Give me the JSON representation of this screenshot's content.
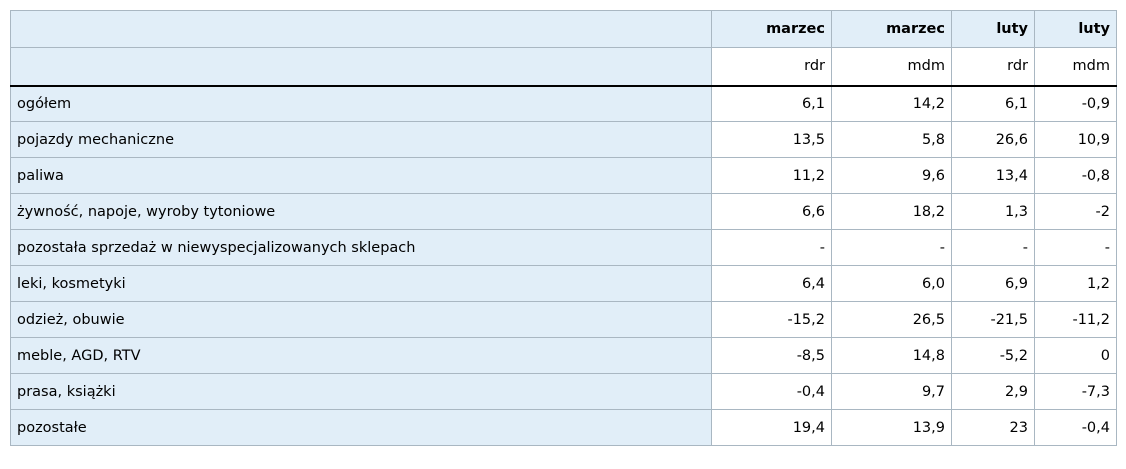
{
  "table": {
    "header": [
      [
        "marzec",
        "marzec",
        "luty",
        "luty"
      ],
      [
        "rdr",
        "mdm",
        "rdr",
        "mdm"
      ]
    ],
    "rows": [
      [
        "ogółem",
        "6,1",
        "14,2",
        "6,1",
        "-0,9"
      ],
      [
        "pojazdy mechaniczne",
        "13,5",
        "5,8",
        "26,6",
        "10,9"
      ],
      [
        "paliwa",
        "11,2",
        "9,6",
        "13,4",
        "-0,8"
      ],
      [
        "żywność, napoje, wyroby tytoniowe",
        "6,6",
        "18,2",
        "1,3",
        "-2"
      ],
      [
        "pozostała sprzedaż w niewyspecjalizowanych sklepach",
        "-",
        "-",
        "-",
        "-"
      ],
      [
        "leki, kosmetyki",
        "6,4",
        "6,0",
        "6,9",
        "1,2"
      ],
      [
        "odzież, obuwie",
        "-15,2",
        "26,5",
        "-21,5",
        "-11,2"
      ],
      [
        "meble, AGD, RTV",
        "-8,5",
        "14,8",
        "-5,2",
        "0"
      ],
      [
        "prasa, książki",
        "-0,4",
        "9,7",
        "2,9",
        "-7,3"
      ],
      [
        "pozostałe",
        "19,4",
        "13,9",
        "23",
        "-0,4"
      ]
    ]
  }
}
